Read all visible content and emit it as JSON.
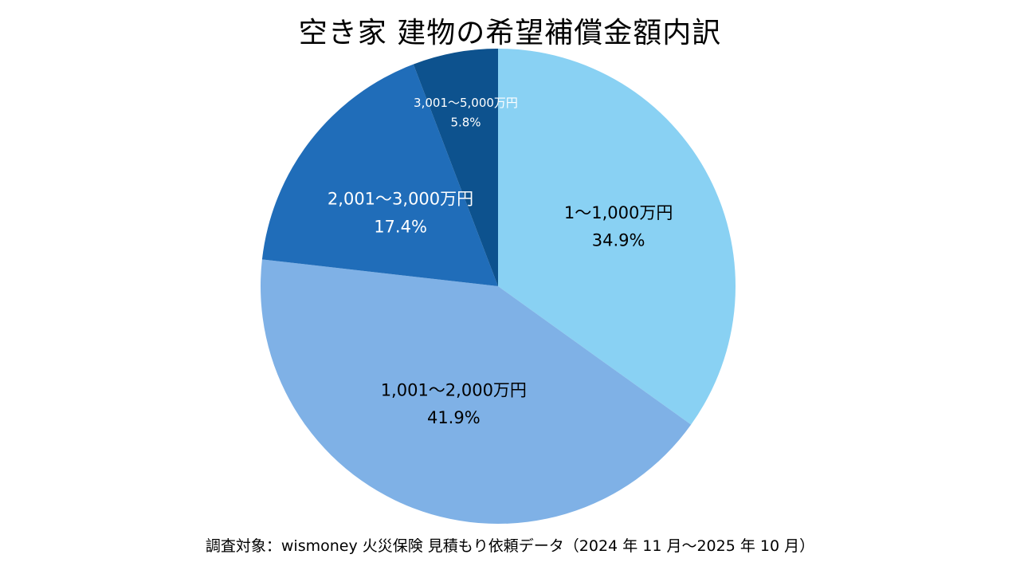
{
  "title": "空き家 建物の希望補償金額内訳",
  "footnote": "調査対象：wismoney 火災保険 見積もり依頼データ（2024 年 11 月〜2025 年 10 月）",
  "chart_data": {
    "type": "pie",
    "title": "空き家 建物の希望補償金額内訳",
    "start": "12 o'clock",
    "direction": "clockwise",
    "slices": [
      {
        "label": "1〜1,000万円",
        "value": 34.9,
        "value_label": "34.9%",
        "color": "#89d1f3",
        "text_color": "#000000"
      },
      {
        "label": "1,001〜2,000万円",
        "value": 41.9,
        "value_label": "41.9%",
        "color": "#7fb1e6",
        "text_color": "#000000"
      },
      {
        "label": "2,001〜3,000万円",
        "value": 17.4,
        "value_label": "17.4%",
        "color": "#206db9",
        "text_color": "#ffffff"
      },
      {
        "label": "3,001〜5,000万円",
        "value": 5.8,
        "value_label": "5.8%",
        "color": "#0d528e",
        "text_color": "#ffffff"
      }
    ]
  }
}
